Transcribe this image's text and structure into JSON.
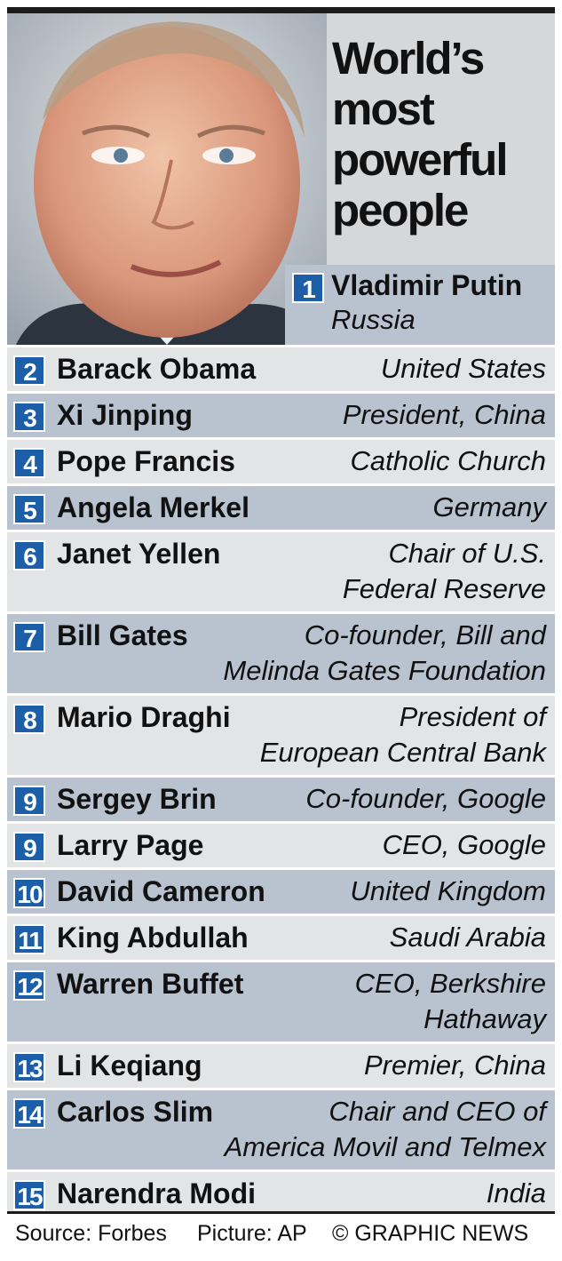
{
  "title_lines": [
    "World’s",
    "most",
    "powerful",
    "people"
  ],
  "first": {
    "rank": "1",
    "name": "Vladimir Putin",
    "desc": "Russia"
  },
  "rows": [
    {
      "rank": "2",
      "name": "Barack Obama",
      "desc": [
        "United States"
      ]
    },
    {
      "rank": "3",
      "name": "Xi Jinping",
      "desc": [
        "President, China"
      ]
    },
    {
      "rank": "4",
      "name": "Pope Francis",
      "desc": [
        "Catholic Church"
      ]
    },
    {
      "rank": "5",
      "name": "Angela Merkel",
      "desc": [
        "Germany"
      ]
    },
    {
      "rank": "6",
      "name": "Janet Yellen",
      "desc": [
        "Chair of U.S.",
        "Federal Reserve"
      ]
    },
    {
      "rank": "7",
      "name": "Bill Gates",
      "desc": [
        "Co-founder, Bill and",
        "Melinda Gates Foundation"
      ]
    },
    {
      "rank": "8",
      "name": "Mario Draghi",
      "desc": [
        "President of",
        "European Central Bank"
      ]
    },
    {
      "rank": "9",
      "name": "Sergey Brin",
      "desc": [
        "Co-founder, Google"
      ]
    },
    {
      "rank": "9",
      "name": "Larry Page",
      "desc": [
        "CEO, Google"
      ]
    },
    {
      "rank": "10",
      "name": "David Cameron",
      "desc": [
        "United Kingdom"
      ]
    },
    {
      "rank": "11",
      "name": "King Abdullah",
      "desc": [
        "Saudi Arabia"
      ]
    },
    {
      "rank": "12",
      "name": "Warren Buffet",
      "desc": [
        "CEO, Berkshire",
        "Hathaway"
      ]
    },
    {
      "rank": "13",
      "name": "Li Keqiang",
      "desc": [
        "Premier, China"
      ]
    },
    {
      "rank": "14",
      "name": "Carlos Slim",
      "desc": [
        "Chair and CEO of",
        "America Movil and Telmex"
      ]
    },
    {
      "rank": "15",
      "name": "Narendra Modi",
      "desc": [
        "India"
      ]
    }
  ],
  "footer": {
    "source": "Source: Forbes",
    "picture": "Picture: AP",
    "copyright": "© GRAPHIC NEWS"
  },
  "colors": {
    "badge": "#1c5fa8",
    "row_dark": "#b9c3d0",
    "row_light": "#e3e4e6"
  }
}
